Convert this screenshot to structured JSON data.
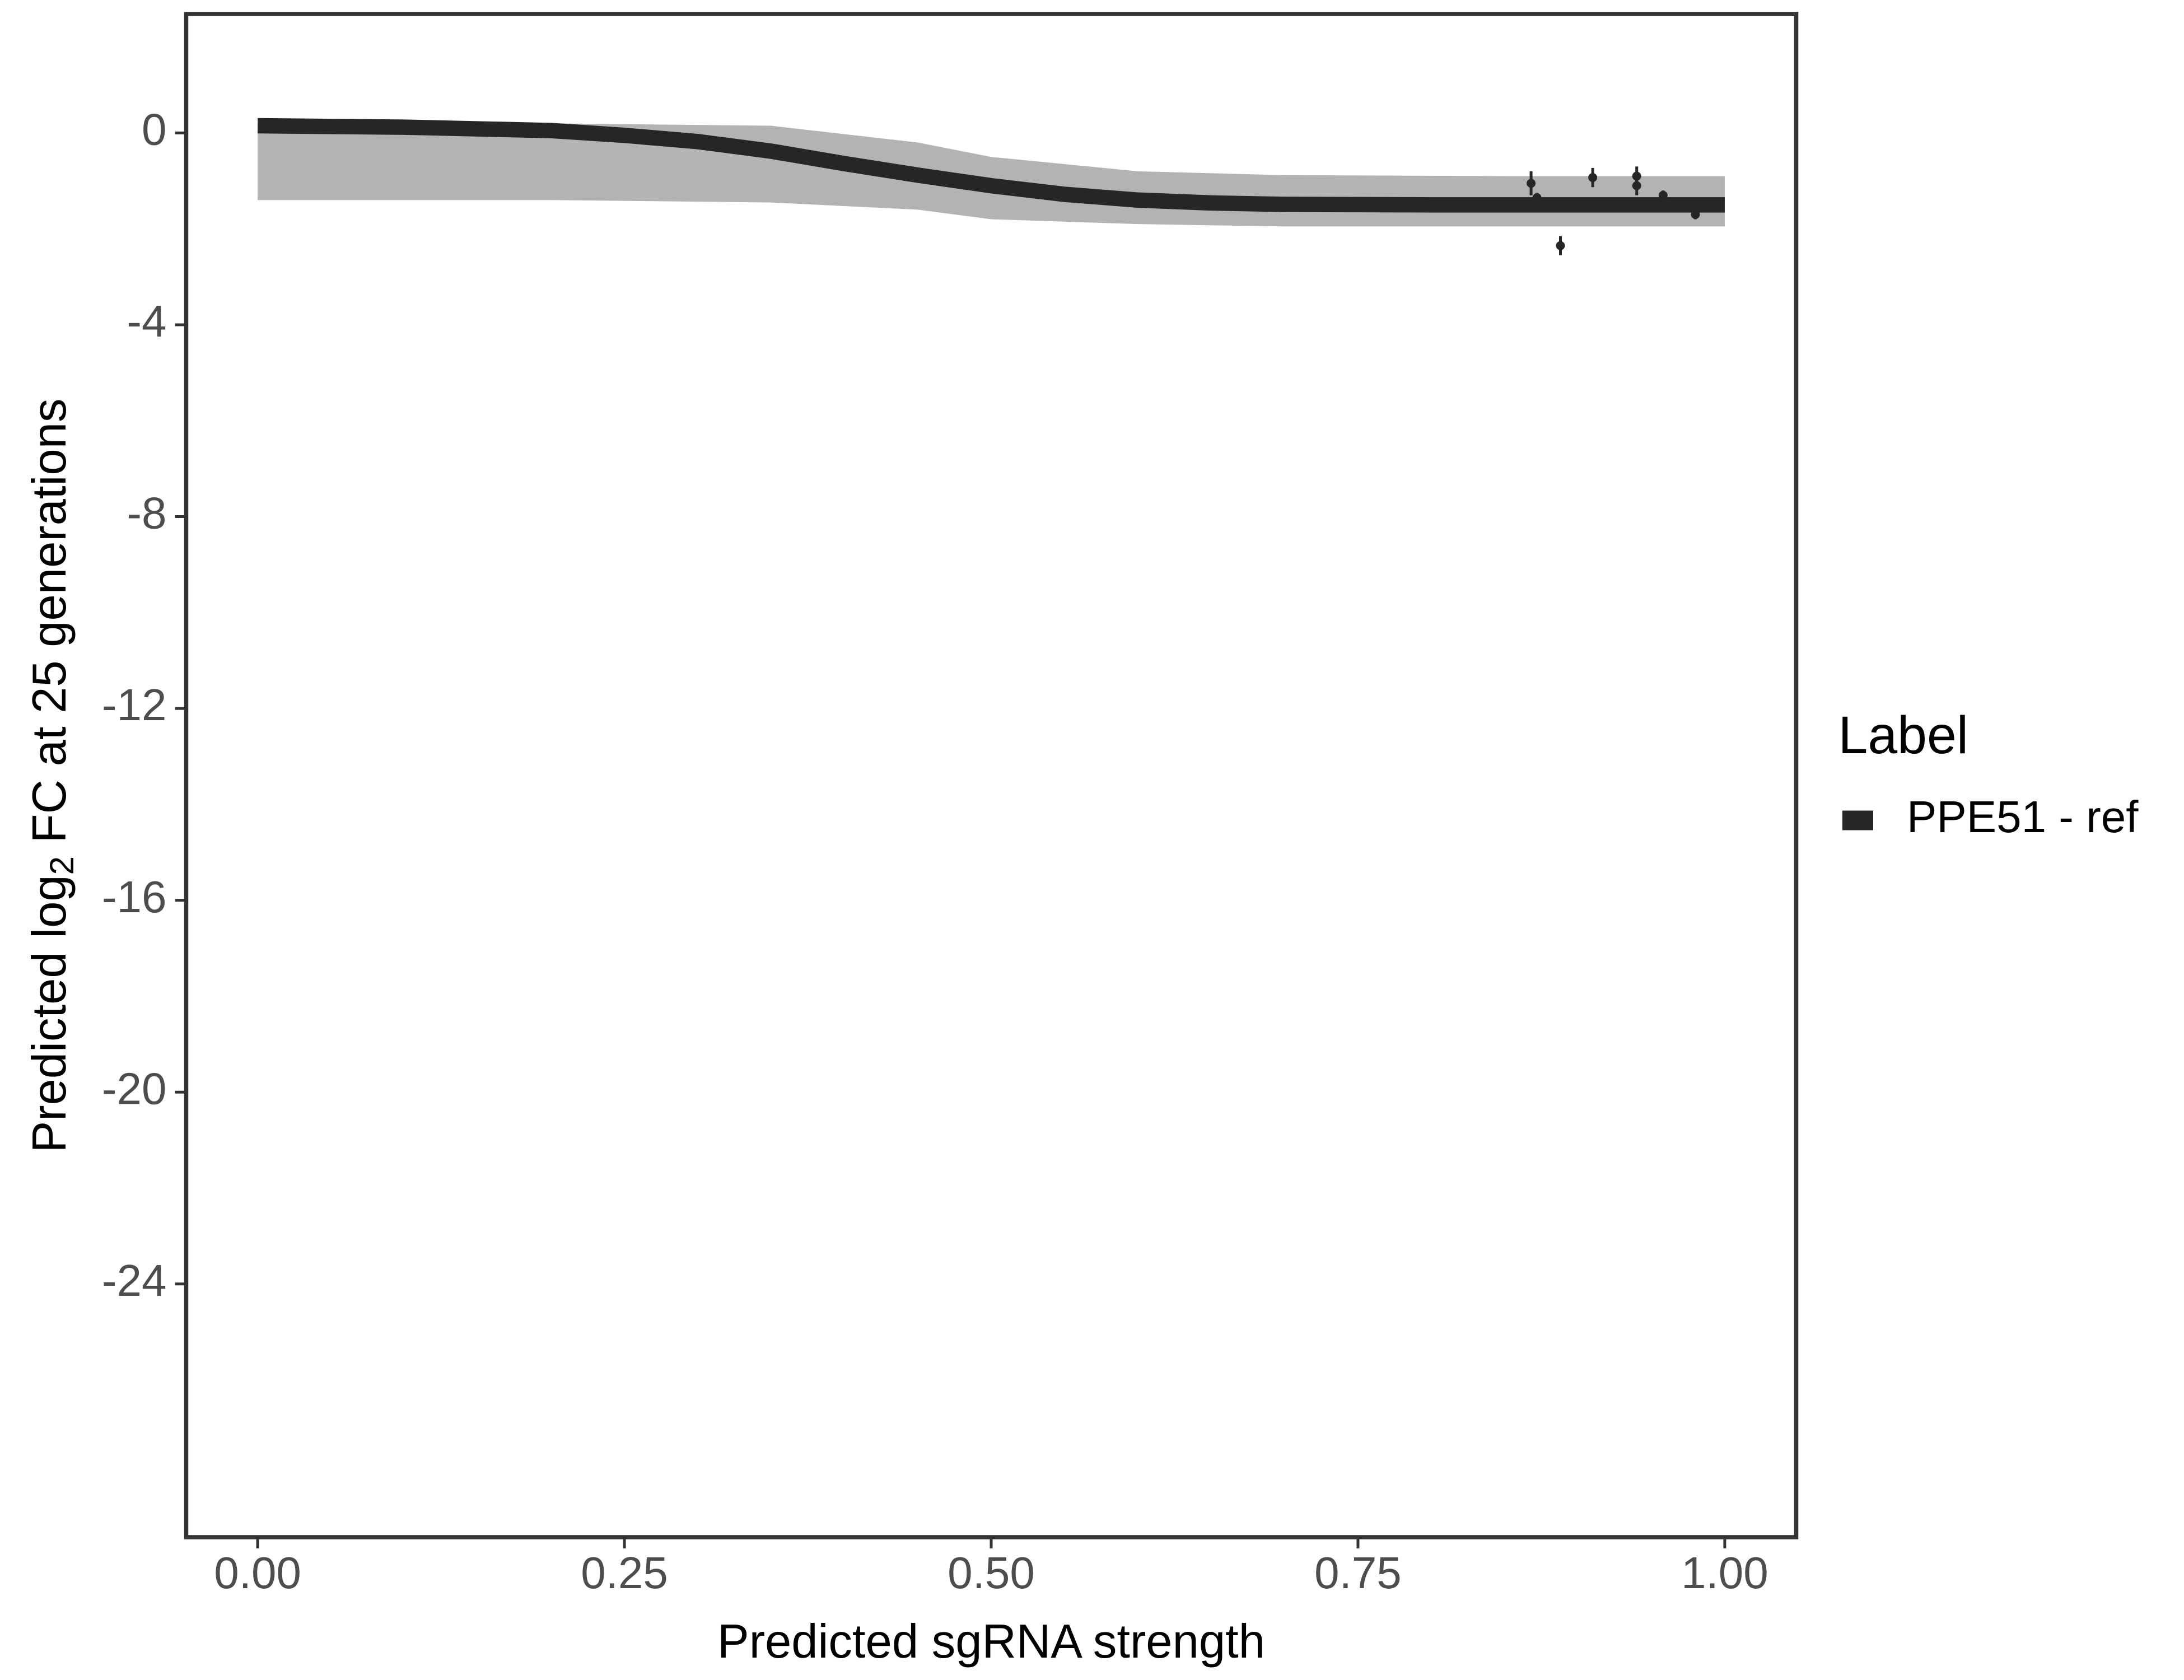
{
  "chart_data": {
    "type": "line",
    "x_label": "Predicted sgRNA strength",
    "y_label": {
      "before": "Predicted  log",
      "sub": "2",
      "after": " FC at 25 generations"
    },
    "legend_title": "Label",
    "legend_position": "right",
    "series": [
      {
        "name": "PPE51 - ref",
        "color": "#262626",
        "x": [
          0,
          0.1,
          0.2,
          0.25,
          0.3,
          0.35,
          0.4,
          0.45,
          0.5,
          0.55,
          0.6,
          0.65,
          0.7,
          0.8,
          0.9,
          1
        ],
        "values": [
          0.15,
          0.12,
          0.05,
          -0.05,
          -0.18,
          -0.38,
          -0.64,
          -0.88,
          -1.1,
          -1.28,
          -1.4,
          -1.46,
          -1.49,
          -1.5,
          -1.5,
          -1.5
        ]
      }
    ],
    "band": {
      "color": "#a6a6a6",
      "x": [
        0,
        0.2,
        0.35,
        0.45,
        0.5,
        0.6,
        0.7,
        0.85,
        1
      ],
      "upper": [
        0.2,
        0.2,
        0.15,
        -0.2,
        -0.5,
        -0.8,
        -0.88,
        -0.9,
        -0.9
      ],
      "lower": [
        -1.4,
        -1.4,
        -1.45,
        -1.6,
        -1.8,
        -1.9,
        -1.95,
        -1.95,
        -1.95
      ]
    },
    "points": {
      "color": "#262626",
      "x": [
        0.868,
        0.872,
        0.888,
        0.91,
        0.935,
        0.94,
        0.94,
        0.958,
        0.98
      ],
      "values": [
        -1.05,
        -1.35,
        -2.35,
        -0.93,
        -1.55,
        -0.9,
        -1.1,
        -1.3,
        -1.7
      ],
      "errors": [
        0.25,
        0.1,
        0.2,
        0.2,
        0.1,
        0.2,
        0.2,
        0.1,
        0.1
      ]
    },
    "xlim": [
      -0.0487,
      1.0487
    ],
    "ylim": [
      2.48,
      -29.28
    ],
    "xticks": [
      {
        "value": 0,
        "label": "0.00"
      },
      {
        "value": 0.25,
        "label": "0.25"
      },
      {
        "value": 0.5,
        "label": "0.50"
      },
      {
        "value": 0.75,
        "label": "0.75"
      },
      {
        "value": 1,
        "label": "1.00"
      }
    ],
    "yticks": [
      0,
      -4,
      -8,
      -12,
      -16,
      -20,
      -24
    ],
    "grid": false
  }
}
